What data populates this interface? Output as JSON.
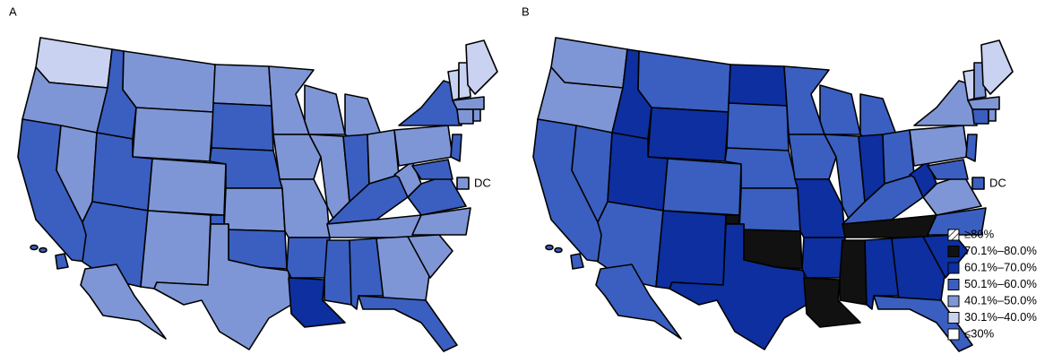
{
  "panels": [
    {
      "label": "A",
      "dc_label": "DC",
      "states": {
        "WA": "30.1%–40.0%",
        "OR": "40.1%–50.0%",
        "CA": "50.1%–60.0%",
        "NV": "40.1%–50.0%",
        "ID": "50.1%–60.0%",
        "MT": "40.1%–50.0%",
        "WY": "40.1%–50.0%",
        "UT": "50.1%–60.0%",
        "AZ": "50.1%–60.0%",
        "CO": "40.1%–50.0%",
        "NM": "40.1%–50.0%",
        "TX": "40.1%–50.0%",
        "ND": "40.1%–50.0%",
        "SD": "50.1%–60.0%",
        "NE": "50.1%–60.0%",
        "KS": "40.1%–50.0%",
        "OK": "50.1%–60.0%",
        "MN": "40.1%–50.0%",
        "IA": "40.1%–50.0%",
        "MO": "40.1%–50.0%",
        "AR": "50.1%–60.0%",
        "LA": "60.1%–70.0%",
        "WI": "40.1%–50.0%",
        "IL": "40.1%–50.0%",
        "MI": "40.1%–50.0%",
        "IN": "50.1%–60.0%",
        "OH": "40.1%–50.0%",
        "KY": "50.1%–60.0%",
        "TN": "40.1%–50.0%",
        "MS": "50.1%–60.0%",
        "AL": "50.1%–60.0%",
        "GA": "40.1%–50.0%",
        "FL": "50.1%–60.0%",
        "SC": "40.1%–50.0%",
        "NC": "40.1%–50.0%",
        "VA": "50.1%–60.0%",
        "WV": "40.1%–50.0%",
        "PA": "40.1%–50.0%",
        "NY": "50.1%–60.0%",
        "VT": "30.1%–40.0%",
        "NH": "30.1%–40.0%",
        "ME": "30.1%–40.0%",
        "MA": "40.1%–50.0%",
        "CT": "40.1%–50.0%",
        "RI": "40.1%–50.0%",
        "NJ": "50.1%–60.0%",
        "MD": "50.1%–60.0%",
        "AK": "40.1%–50.0%",
        "HI": "50.1%–60.0%",
        "DC": "40.1%–50.0%"
      }
    },
    {
      "label": "B",
      "dc_label": "DC",
      "states": {
        "WA": "40.1%–50.0%",
        "OR": "40.1%–50.0%",
        "CA": "50.1%–60.0%",
        "NV": "50.1%–60.0%",
        "ID": "60.1%–70.0%",
        "MT": "50.1%–60.0%",
        "WY": "60.1%–70.0%",
        "UT": "60.1%–70.0%",
        "AZ": "50.1%–60.0%",
        "CO": "50.1%–60.0%",
        "NM": "60.1%–70.0%",
        "TX": "60.1%–70.0%",
        "ND": "60.1%–70.0%",
        "SD": "50.1%–60.0%",
        "NE": "50.1%–60.0%",
        "KS": "50.1%–60.0%",
        "OK": "70.1%–80.0%",
        "MN": "50.1%–60.0%",
        "IA": "50.1%–60.0%",
        "MO": "60.1%–70.0%",
        "AR": "60.1%–70.0%",
        "LA": "70.1%–80.0%",
        "WI": "50.1%–60.0%",
        "IL": "50.1%–60.0%",
        "MI": "50.1%–60.0%",
        "IN": "60.1%–70.0%",
        "OH": "50.1%–60.0%",
        "KY": "50.1%–60.0%",
        "TN": "70.1%–80.0%",
        "MS": "70.1%–80.0%",
        "AL": "60.1%–70.0%",
        "GA": "60.1%–70.0%",
        "FL": "50.1%–60.0%",
        "SC": "60.1%–70.0%",
        "NC": "50.1%–60.0%",
        "VA": "40.1%–50.0%",
        "WV": "60.1%–70.0%",
        "PA": "40.1%–50.0%",
        "NY": "40.1%–50.0%",
        "VT": "30.1%–40.0%",
        "NH": "40.1%–50.0%",
        "ME": "30.1%–40.0%",
        "MA": "40.1%–50.0%",
        "CT": "50.1%–60.0%",
        "RI": "40.1%–50.0%",
        "NJ": "50.1%–60.0%",
        "MD": "50.1%–60.0%",
        "AK": "50.1%–60.0%",
        "HI": "50.1%–60.0%",
        "DC": "50.1%–60.0%"
      }
    }
  ],
  "legend": [
    {
      "label": "≥80%",
      "color": "hatch"
    },
    {
      "label": "70.1%–80.0%",
      "color": "#111111"
    },
    {
      "label": "60.1%–70.0%",
      "color": "#0d2f9f"
    },
    {
      "label": "50.1%–60.0%",
      "color": "#3a5fc0"
    },
    {
      "label": "40.1%–50.0%",
      "color": "#7f96d6"
    },
    {
      "label": "30.1%–40.0%",
      "color": "#c9d2f0"
    },
    {
      "label": "≤30%",
      "color": "#ffffff"
    }
  ]
}
